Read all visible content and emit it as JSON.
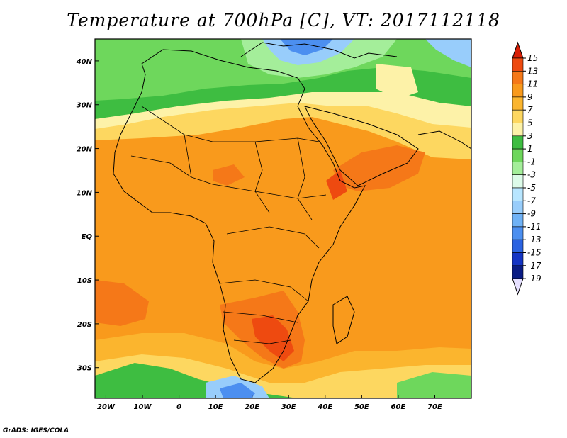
{
  "title": "Temperature at 700hPa [C], VT: 2017112118",
  "credit": "GrADS: IGES/COLA",
  "map": {
    "lon_range": [
      -23,
      80
    ],
    "lat_range": [
      -37,
      45
    ],
    "lon_ticks": [
      {
        "value": -20,
        "label": "20W"
      },
      {
        "value": -10,
        "label": "10W"
      },
      {
        "value": 0,
        "label": "0"
      },
      {
        "value": 10,
        "label": "10E"
      },
      {
        "value": 20,
        "label": "20E"
      },
      {
        "value": 30,
        "label": "30E"
      },
      {
        "value": 40,
        "label": "40E"
      },
      {
        "value": 50,
        "label": "50E"
      },
      {
        "value": 60,
        "label": "60E"
      },
      {
        "value": 70,
        "label": "70E"
      }
    ],
    "lat_ticks": [
      {
        "value": 40,
        "label": "40N"
      },
      {
        "value": 30,
        "label": "30N"
      },
      {
        "value": 20,
        "label": "20N"
      },
      {
        "value": 10,
        "label": "10N"
      },
      {
        "value": 0,
        "label": "EQ"
      },
      {
        "value": -10,
        "label": "10S"
      },
      {
        "value": -20,
        "label": "20S"
      },
      {
        "value": -30,
        "label": "30S"
      }
    ]
  },
  "colorbar": {
    "levels": [
      "15",
      "13",
      "11",
      "9",
      "7",
      "5",
      "3",
      "1",
      "-1",
      "-3",
      "-5",
      "-7",
      "-9",
      "-11",
      "-13",
      "-15",
      "-17",
      "-19"
    ],
    "colors": [
      "#d81e05",
      "#ee4a10",
      "#f57818",
      "#f99a1c",
      "#fbb52e",
      "#fdd760",
      "#fdf2a8",
      "#3ebd41",
      "#6ed75c",
      "#a4ee9a",
      "#ddfbe9",
      "#b8e6ff",
      "#98cdfb",
      "#6fb2f6",
      "#4c8ff0",
      "#2b63e1",
      "#1434c4",
      "#0a1c85",
      "#e6e0ff"
    ]
  }
}
